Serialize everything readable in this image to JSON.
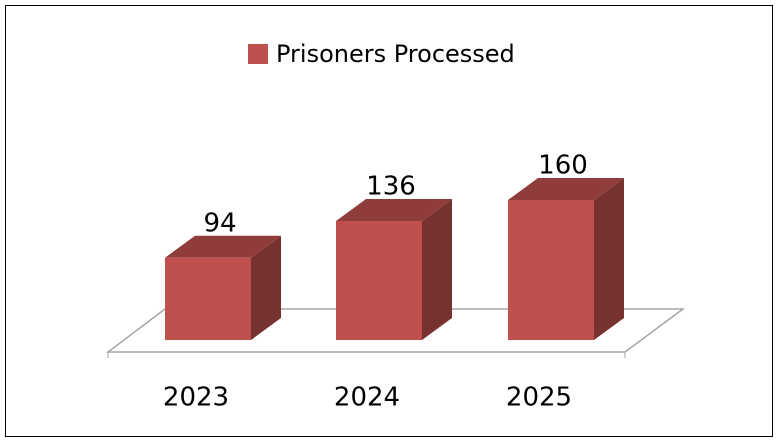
{
  "chart_data": {
    "type": "bar3d",
    "series": [
      {
        "name": "Prisoners Processed",
        "color": "#c0504d",
        "values": [
          94,
          136,
          160
        ]
      }
    ],
    "categories": [
      "2023",
      "2024",
      "2025"
    ],
    "legend": "top"
  }
}
